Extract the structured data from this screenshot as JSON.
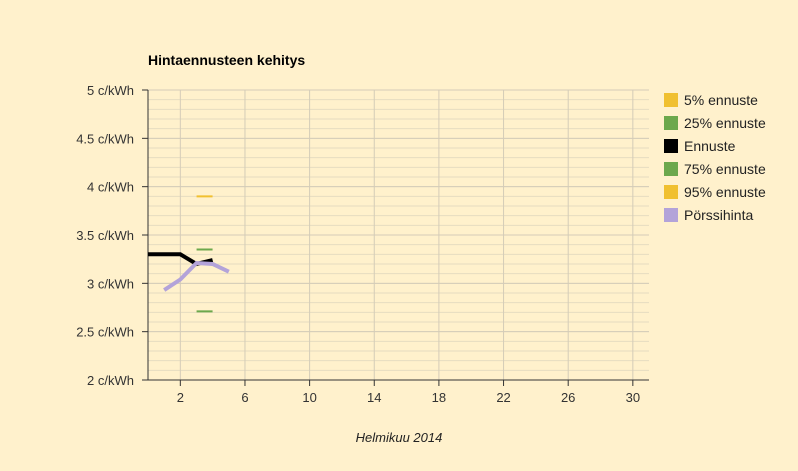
{
  "chart_data": {
    "type": "line",
    "title": "Hintaennusteen kehitys",
    "xlabel": "Helmikuu 2014",
    "ylabel": "",
    "xlim": [
      0,
      31
    ],
    "ylim": [
      2,
      5
    ],
    "x_ticks": [
      2,
      6,
      10,
      14,
      18,
      22,
      26,
      30
    ],
    "y_ticks": [
      2,
      2.5,
      3,
      3.5,
      4,
      4.5,
      5
    ],
    "y_unit": " c/kWh",
    "grid": true,
    "legend_position": "right",
    "series": [
      {
        "name": "5% ennuste",
        "color": "#f0c030",
        "style": "tick",
        "x": [
          3.5
        ],
        "y": [
          3.9
        ]
      },
      {
        "name": "25% ennuste",
        "color": "#6ca84c",
        "style": "tick",
        "x": [
          3.5
        ],
        "y": [
          2.71
        ]
      },
      {
        "name": "Ennuste",
        "color": "#000000",
        "style": "line",
        "x": [
          0,
          2,
          3,
          4
        ],
        "y": [
          3.3,
          3.3,
          3.2,
          3.24
        ]
      },
      {
        "name": "75% ennuste",
        "color": "#6ca84c",
        "style": "tick",
        "x": [
          3.5
        ],
        "y": [
          3.35
        ]
      },
      {
        "name": "95% ennuste",
        "color": "#f0c030",
        "style": "tick",
        "x": [],
        "y": []
      },
      {
        "name": "Pörssihinta",
        "color": "#b3a3d9",
        "style": "line",
        "x": [
          1,
          2,
          3,
          4,
          5
        ],
        "y": [
          2.93,
          3.04,
          3.21,
          3.2,
          3.12
        ]
      }
    ]
  }
}
